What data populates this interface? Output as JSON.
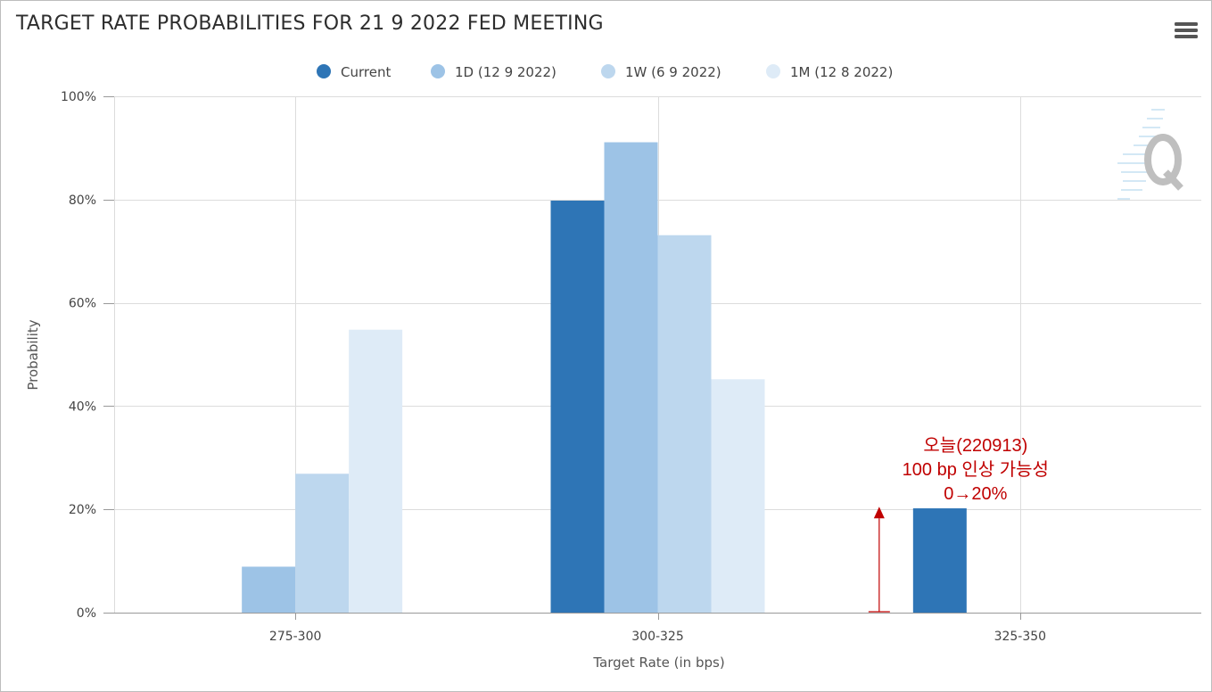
{
  "chart_data": {
    "type": "bar",
    "title": "TARGET RATE PROBABILITIES FOR 21 9 2022 FED MEETING",
    "xlabel": "Target Rate (in bps)",
    "ylabel": "Probability",
    "categories": [
      "275-300",
      "300-325",
      "325-350"
    ],
    "ylim": [
      0,
      100
    ],
    "yticks": [
      0,
      20,
      40,
      60,
      80,
      100
    ],
    "ytick_labels": [
      "0%",
      "20%",
      "40%",
      "60%",
      "80%",
      "100%"
    ],
    "grid": true,
    "legend_position": "top-center",
    "series": [
      {
        "name": "Current",
        "color": "#2e75b6",
        "values": [
          0,
          79.8,
          20.2
        ]
      },
      {
        "name": "1D (12 9 2022)",
        "color": "#9dc3e6",
        "values": [
          8.9,
          91.1,
          0
        ]
      },
      {
        "name": "1W (6 9 2022)",
        "color": "#bdd7ee",
        "values": [
          26.9,
          73.1,
          0
        ]
      },
      {
        "name": "1M (12 8 2022)",
        "color": "#deebf7",
        "values": [
          54.8,
          45.2,
          0
        ]
      }
    ],
    "annotation": {
      "lines": [
        "오늘(220913)",
        "100 bp 인상 가능성",
        "0→20%"
      ],
      "category": "325-350",
      "from_value": 0,
      "to_value": 20,
      "color": "#c00000"
    }
  },
  "menu": {
    "icon": "hamburger-menu-icon"
  },
  "watermark": {
    "icon": "quikstrike-q-logo-icon"
  }
}
